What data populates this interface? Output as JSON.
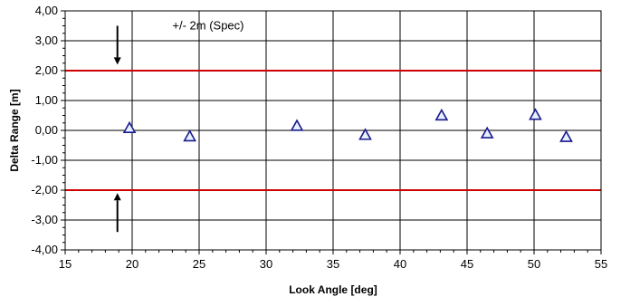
{
  "chart_data": {
    "type": "scatter",
    "title": "",
    "xlabel": "Look Angle [deg]",
    "ylabel": "Delta Range [m]",
    "xlim": [
      15,
      55
    ],
    "ylim": [
      -4,
      4
    ],
    "x_ticks": [
      15,
      20,
      25,
      30,
      35,
      40,
      45,
      50,
      55
    ],
    "x_tick_labels": [
      "15",
      "20",
      "25",
      "30",
      "35",
      "40",
      "45",
      "50",
      "55"
    ],
    "y_ticks": [
      -4,
      -3,
      -2,
      -1,
      0,
      1,
      2,
      3,
      4
    ],
    "y_tick_labels": [
      "-4,00",
      "-3,00",
      "-2,00",
      "-1,00",
      "0,00",
      "1,00",
      "2,00",
      "3,00",
      "4,00"
    ],
    "grid": true,
    "marker": "triangle",
    "marker_color": "#1a1a8c",
    "marker_fill": "#e6f0ff",
    "points": [
      {
        "x": 19.8,
        "y": 0.08
      },
      {
        "x": 24.3,
        "y": -0.2
      },
      {
        "x": 32.3,
        "y": 0.15
      },
      {
        "x": 37.4,
        "y": -0.15
      },
      {
        "x": 43.1,
        "y": 0.5
      },
      {
        "x": 46.5,
        "y": -0.1
      },
      {
        "x": 50.1,
        "y": 0.52
      },
      {
        "x": 52.4,
        "y": -0.22
      }
    ],
    "reference_lines": [
      {
        "y": 2,
        "color": "#cc0000"
      },
      {
        "y": -2,
        "color": "#cc0000"
      }
    ],
    "annotation": {
      "text": "+/- 2m (Spec)",
      "x": 23.0,
      "y": 3.5
    },
    "arrows": [
      {
        "x": 18.9,
        "y_from": 3.5,
        "y_to": 2.2
      },
      {
        "x": 18.9,
        "y_from": -3.4,
        "y_to": -2.1
      }
    ]
  }
}
